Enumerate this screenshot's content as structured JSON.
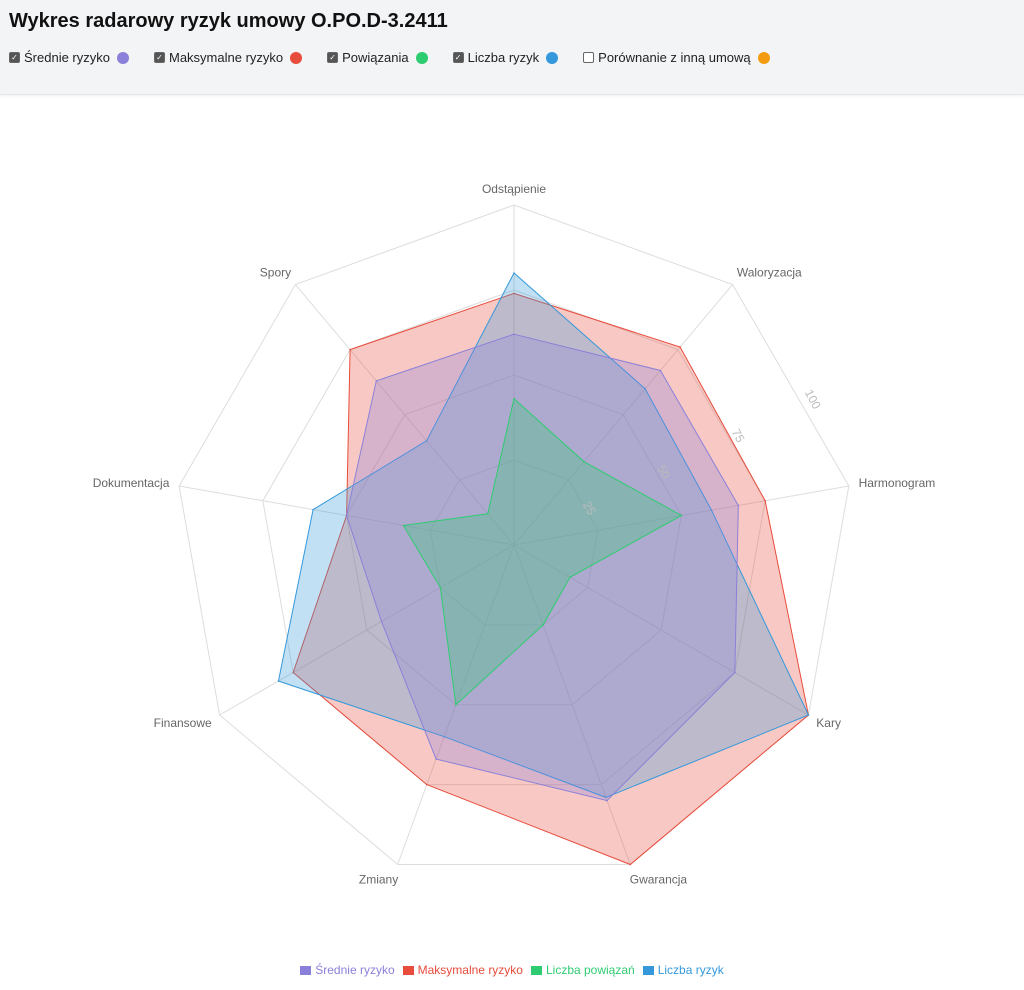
{
  "header": {
    "title": "Wykres radarowy ryzyk umowy O.PO.D-3.2411",
    "toggles": [
      {
        "label": "Średnie ryzyko",
        "checked": true,
        "color": "#8b80d9"
      },
      {
        "label": "Maksymalne ryzyko",
        "checked": true,
        "color": "#e74c3c"
      },
      {
        "label": "Powiązania",
        "checked": true,
        "color": "#2ecc71"
      },
      {
        "label": "Liczba ryzyk",
        "checked": true,
        "color": "#3498db"
      },
      {
        "label": "Porównanie z inną umową",
        "checked": false,
        "color": "#f39c12"
      }
    ]
  },
  "chart_data": {
    "type": "radar",
    "title": "",
    "categories": [
      "Odstąpienie",
      "Waloryzacja",
      "Harmonogram",
      "Kary",
      "Gwarancja",
      "Zmiany",
      "Finansowe",
      "Dokumentacja",
      "Spory"
    ],
    "rlim": [
      0,
      100
    ],
    "ticks": [
      "25",
      "50",
      "75",
      "100"
    ],
    "grid": true,
    "legend_position": "bottom",
    "series": [
      {
        "name": "Maksymalne ryzyko",
        "color": "#e74c3c",
        "values": [
          74,
          76,
          75,
          100,
          100,
          75,
          75,
          50,
          75
        ]
      },
      {
        "name": "Liczba ryzyk",
        "color": "#3498db",
        "values": [
          80,
          60,
          59,
          100,
          79,
          60,
          80,
          60,
          40
        ]
      },
      {
        "name": "Średnie ryzyko",
        "color": "#8b80d9",
        "values": [
          62,
          67,
          67,
          75,
          80,
          67,
          45,
          50,
          63
        ]
      },
      {
        "name": "Liczba powiązań",
        "color": "#2ecc71",
        "values": [
          43,
          32,
          50,
          19,
          25,
          50,
          25,
          33,
          12
        ]
      }
    ],
    "legend": [
      {
        "label": "Średnie ryzyko",
        "color": "#8b80d9"
      },
      {
        "label": "Maksymalne ryzyko",
        "color": "#e74c3c"
      },
      {
        "label": "Liczba powiązań",
        "color": "#2ecc71"
      },
      {
        "label": "Liczba ryzyk",
        "color": "#3498db"
      }
    ]
  }
}
